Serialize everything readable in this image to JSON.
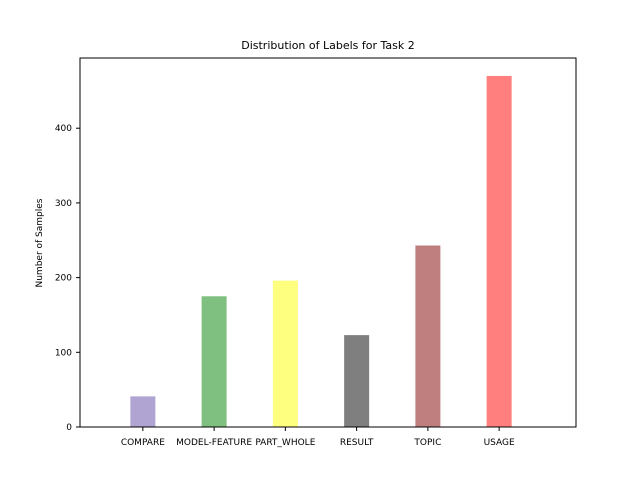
{
  "chart_data": {
    "type": "bar",
    "title": "Distribution of Labels for Task 2",
    "xlabel": "",
    "ylabel": "Number of Samples",
    "categories": [
      "COMPARE",
      "MODEL-FEATURE",
      "PART_WHOLE",
      "RESULT",
      "TOPIC",
      "USAGE"
    ],
    "values": [
      41,
      175,
      196,
      123,
      243,
      470
    ],
    "colors": [
      "#AFA4D2",
      "#7FBF7F",
      "#FFFF7F",
      "#7F7F7F",
      "#BF7F7F",
      "#FF7F7F"
    ],
    "ylim": [
      0,
      494
    ],
    "yticks": [
      0,
      100,
      200,
      300,
      400
    ],
    "grid": false,
    "legend": "none"
  }
}
